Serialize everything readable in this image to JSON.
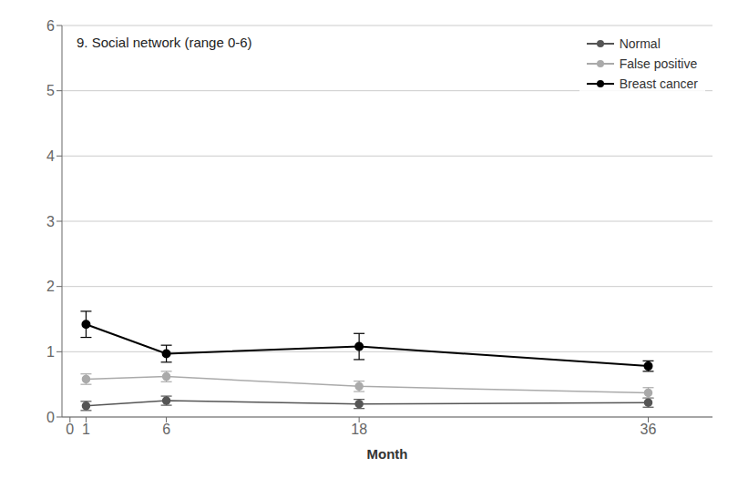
{
  "chart_data": {
    "type": "line",
    "title": "9. Social network (range 0-6)",
    "xlabel": "Month",
    "x": [
      1,
      6,
      18,
      36
    ],
    "xlim": [
      -0.5,
      40
    ],
    "xticks": [
      0,
      1,
      6,
      18,
      36
    ],
    "ylim": [
      0,
      6
    ],
    "yticks": [
      0,
      1,
      2,
      3,
      4,
      5,
      6
    ],
    "grid": "y",
    "legend": "upper right",
    "marker": "circle",
    "series": [
      {
        "name": "Normal",
        "color": "#555555",
        "values": [
          0.17,
          0.25,
          0.2,
          0.22
        ],
        "yerr": [
          0.07,
          0.07,
          0.07,
          0.07
        ]
      },
      {
        "name": "False positive",
        "color": "#aaaaaa",
        "values": [
          0.58,
          0.62,
          0.47,
          0.37
        ],
        "yerr": [
          0.08,
          0.08,
          0.08,
          0.08
        ]
      },
      {
        "name": "Breast cancer",
        "color": "#000000",
        "values": [
          1.42,
          0.97,
          1.08,
          0.78
        ],
        "yerr": [
          0.2,
          0.13,
          0.2,
          0.08
        ]
      }
    ]
  }
}
